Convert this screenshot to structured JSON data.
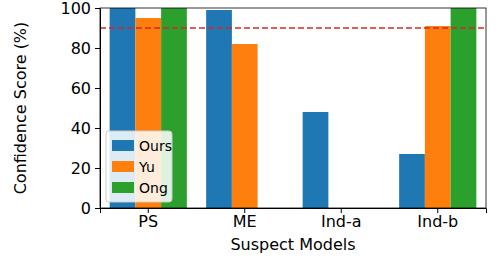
{
  "chart_data": {
    "type": "bar",
    "categories": [
      "PS",
      "ME",
      "Ind-a",
      "Ind-b"
    ],
    "series": [
      {
        "name": "Ours",
        "color": "#1f77b4",
        "values": [
          100,
          99,
          48,
          27
        ]
      },
      {
        "name": "Yu",
        "color": "#ff7f0e",
        "values": [
          95,
          82,
          0,
          91
        ]
      },
      {
        "name": "Ong",
        "color": "#2ca02c",
        "values": [
          100,
          0,
          0,
          100
        ]
      }
    ],
    "x_label": "Suspect Models",
    "y_label": "Confidence Score (%)",
    "ylim": [
      0,
      100
    ],
    "yticks": [
      0,
      20,
      40,
      60,
      80,
      100
    ],
    "hline": {
      "value": 90,
      "color": "#d62728",
      "line_style": "dashed"
    },
    "legend": "lower left",
    "grid": false
  }
}
